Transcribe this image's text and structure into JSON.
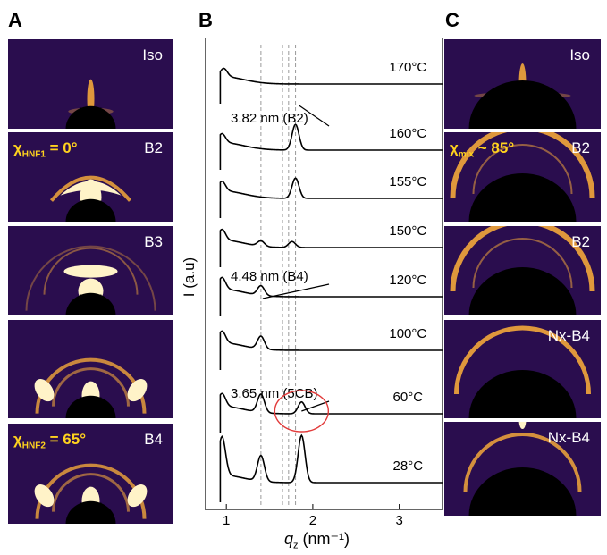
{
  "panel_labels": {
    "a": "A",
    "b": "B",
    "c": "C"
  },
  "panel_a": {
    "tiles": [
      {
        "label": "Iso"
      },
      {
        "label": "B2",
        "chi_symbol": "χ",
        "chi_sub": "HNF1",
        "chi_value": "= 0°"
      },
      {
        "label": "B3"
      },
      {
        "label": ""
      },
      {
        "label": "B4",
        "chi_symbol": "χ",
        "chi_sub": "HNF2",
        "chi_value": "= 65°"
      }
    ]
  },
  "panel_c": {
    "tiles": [
      {
        "label": "Iso"
      },
      {
        "label": "B2",
        "chi_symbol": "χ",
        "chi_sub": "mix",
        "chi_value": "~ 85°"
      },
      {
        "label": "B2"
      },
      {
        "label": "Nx-B4"
      },
      {
        "label": "Nx-B4"
      }
    ]
  },
  "colors": {
    "scatter_bg": "#2a0d4e",
    "ring": "#ffb23a",
    "hot": "#fff3c8",
    "annotation": "#ffd21e",
    "circle": "#e23a3a",
    "trace": "#000000"
  },
  "chart_data": {
    "type": "line",
    "xlabel_symbol": "q",
    "xlabel_sub": "z",
    "xlabel_units": "(nm⁻¹)",
    "ylabel": "I (a.u)",
    "xlim": [
      0.75,
      3.5
    ],
    "x_ticks": [
      "1",
      "2",
      "3"
    ],
    "y_ticks": "none",
    "reference_lines_q": [
      1.4,
      1.65,
      1.72,
      1.8
    ],
    "series": [
      {
        "name": "170°C",
        "peaks": [
          [
            0.97,
            0.38
          ]
        ]
      },
      {
        "name": "160°C",
        "peaks": [
          [
            0.95,
            0.42
          ],
          [
            1.8,
            1.2
          ]
        ]
      },
      {
        "name": "155°C",
        "peaks": [
          [
            0.95,
            0.45
          ],
          [
            1.8,
            0.95
          ]
        ]
      },
      {
        "name": "150°C",
        "peaks": [
          [
            0.95,
            0.5
          ],
          [
            1.4,
            0.25
          ],
          [
            1.76,
            0.28
          ]
        ]
      },
      {
        "name": "120°C",
        "peaks": [
          [
            0.95,
            0.55
          ],
          [
            1.4,
            0.45
          ]
        ]
      },
      {
        "name": "100°C",
        "peaks": [
          [
            0.95,
            0.55
          ],
          [
            1.4,
            0.6
          ]
        ]
      },
      {
        "name": "60°C",
        "peaks": [
          [
            0.95,
            0.6
          ],
          [
            1.4,
            0.85
          ],
          [
            1.87,
            0.55
          ]
        ]
      },
      {
        "name": "28°C",
        "peaks": [
          [
            0.95,
            1.8
          ],
          [
            1.4,
            1.2
          ],
          [
            1.87,
            2.2
          ]
        ]
      }
    ],
    "annotations": [
      {
        "text": "3.82 nm  (B2)",
        "q": 1.8,
        "series": "160°C"
      },
      {
        "text": "4.48 nm  (B4)",
        "q": 1.4,
        "series": "120°C"
      },
      {
        "text": "3.65 nm  (5CB)",
        "q": 1.87,
        "series": "60°C"
      }
    ],
    "grid": false
  }
}
